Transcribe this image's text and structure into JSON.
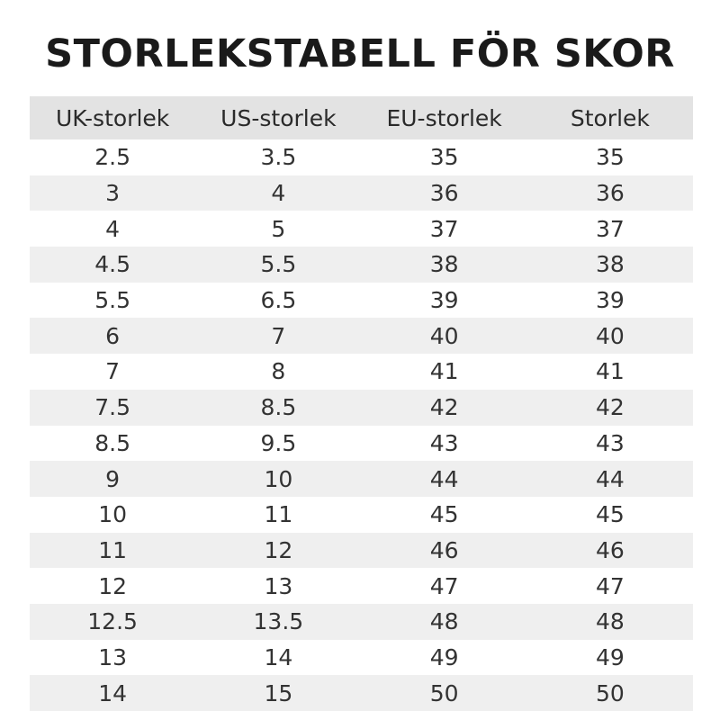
{
  "header": {
    "title": "STORLEKSTABELL FÖR SKOR"
  },
  "table": {
    "columns": [
      "UK-storlek",
      "US-storlek",
      "EU-storlek",
      "Storlek"
    ],
    "rows": [
      [
        "2.5",
        "3.5",
        "35",
        "35"
      ],
      [
        "3",
        "4",
        "36",
        "36"
      ],
      [
        "4",
        "5",
        "37",
        "37"
      ],
      [
        "4.5",
        "5.5",
        "38",
        "38"
      ],
      [
        "5.5",
        "6.5",
        "39",
        "39"
      ],
      [
        "6",
        "7",
        "40",
        "40"
      ],
      [
        "7",
        "8",
        "41",
        "41"
      ],
      [
        "7.5",
        "8.5",
        "42",
        "42"
      ],
      [
        "8.5",
        "9.5",
        "43",
        "43"
      ],
      [
        "9",
        "10",
        "44",
        "44"
      ],
      [
        "10",
        "11",
        "45",
        "45"
      ],
      [
        "11",
        "12",
        "46",
        "46"
      ],
      [
        "12",
        "13",
        "47",
        "47"
      ],
      [
        "12.5",
        "13.5",
        "48",
        "48"
      ],
      [
        "13",
        "14",
        "49",
        "49"
      ],
      [
        "14",
        "15",
        "50",
        "50"
      ]
    ]
  }
}
